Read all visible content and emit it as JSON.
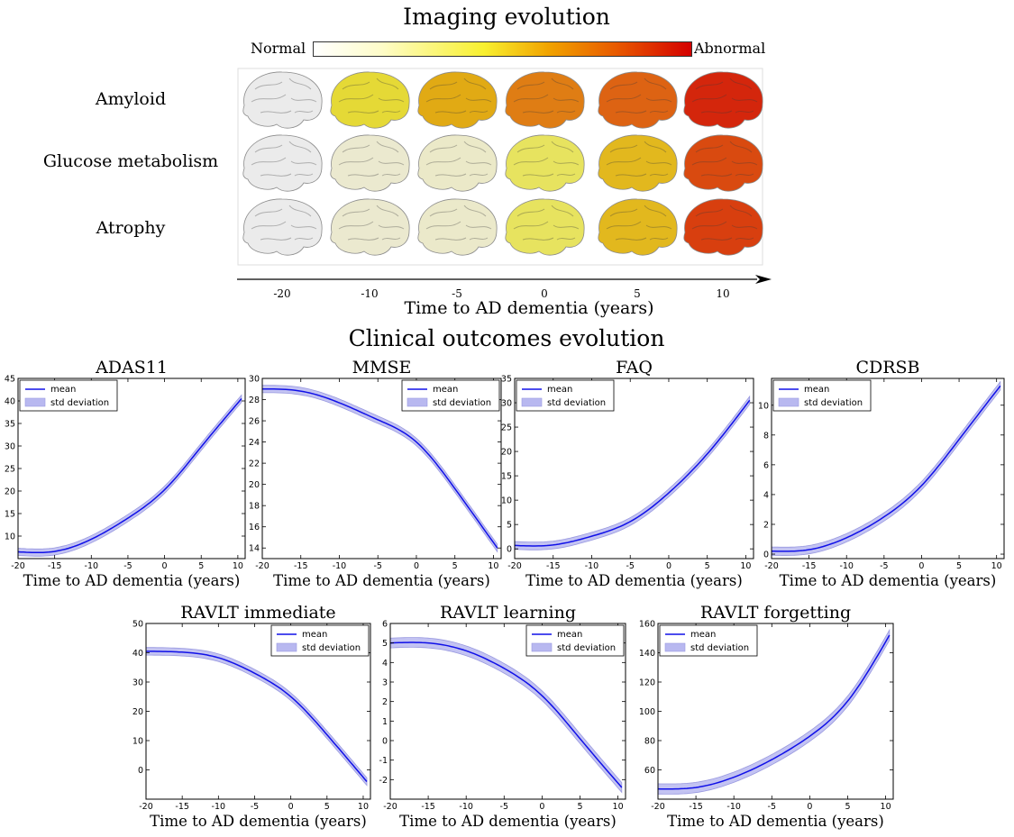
{
  "imaging": {
    "title": "Imaging evolution",
    "colorbar": {
      "low_label": "Normal",
      "high_label": "Abnormal"
    },
    "rows": [
      {
        "label": "Amyloid",
        "levels": [
          0.0,
          0.38,
          0.55,
          0.7,
          0.78,
          0.95
        ]
      },
      {
        "label": "Glucose metabolism",
        "levels": [
          0.0,
          0.12,
          0.15,
          0.3,
          0.5,
          0.85
        ]
      },
      {
        "label": "Atrophy",
        "levels": [
          0.0,
          0.12,
          0.14,
          0.3,
          0.5,
          0.88
        ]
      }
    ],
    "axis": {
      "label": "Time to AD dementia (years)",
      "ticks": [
        "-20",
        "-10",
        "-5",
        "0",
        "5",
        "10"
      ]
    }
  },
  "clinical": {
    "title": "Clinical outcomes evolution"
  },
  "legend": {
    "mean": "mean",
    "std": "std deviation"
  },
  "colors": {
    "mean_line": "#1010e8",
    "std_band": "#b8b8f0"
  },
  "chart_data": [
    {
      "type": "line",
      "title": "ADAS11",
      "xlabel": "Time to AD dementia (years)",
      "ylabel": "",
      "xlim": [
        -20,
        11
      ],
      "ylim": [
        5,
        45
      ],
      "xticks": [
        -20,
        -15,
        -10,
        -5,
        0,
        5,
        10
      ],
      "yticks": [
        10,
        15,
        20,
        25,
        30,
        35,
        40,
        45
      ],
      "legend": "top-left",
      "series": [
        {
          "name": "mean",
          "x": [
            -20,
            -15,
            -10,
            -5,
            0,
            5,
            10.5
          ],
          "y": [
            6.5,
            6.6,
            9.3,
            14.0,
            20.3,
            29.8,
            40.5
          ],
          "std": 0.8
        }
      ]
    },
    {
      "type": "line",
      "title": "MMSE",
      "xlabel": "Time to AD dementia (years)",
      "ylabel": "",
      "xlim": [
        -20,
        11
      ],
      "ylim": [
        13,
        30
      ],
      "xticks": [
        -20,
        -15,
        -10,
        -5,
        0,
        5,
        10
      ],
      "yticks": [
        14,
        16,
        18,
        20,
        22,
        24,
        26,
        28,
        30
      ],
      "legend": "top-right",
      "series": [
        {
          "name": "mean",
          "x": [
            -20,
            -15,
            -10,
            -5,
            0,
            5,
            10.5
          ],
          "y": [
            29.0,
            28.8,
            27.7,
            26.1,
            24.0,
            19.6,
            14.0
          ],
          "std": 0.35
        }
      ]
    },
    {
      "type": "line",
      "title": "FAQ",
      "xlabel": "Time to AD dementia (years)",
      "ylabel": "",
      "xlim": [
        -20,
        11
      ],
      "ylim": [
        -2,
        35
      ],
      "xticks": [
        -20,
        -15,
        -10,
        -5,
        0,
        5,
        10
      ],
      "yticks": [
        0,
        5,
        10,
        15,
        20,
        25,
        30,
        35
      ],
      "legend": "top-left",
      "series": [
        {
          "name": "mean",
          "x": [
            -20,
            -15,
            -10,
            -5,
            0,
            5,
            10.5
          ],
          "y": [
            0.7,
            0.8,
            2.6,
            5.6,
            11.5,
            19.5,
            30.5
          ],
          "std": 0.8
        }
      ]
    },
    {
      "type": "line",
      "title": "CDRSB",
      "xlabel": "Time to AD dementia (years)",
      "ylabel": "",
      "xlim": [
        -20,
        11
      ],
      "ylim": [
        -0.3,
        11.8
      ],
      "xticks": [
        -20,
        -15,
        -10,
        -5,
        0,
        5,
        10
      ],
      "yticks": [
        0,
        2,
        4,
        6,
        8,
        10
      ],
      "legend": "top-left",
      "series": [
        {
          "name": "mean",
          "x": [
            -20,
            -15,
            -10,
            -5,
            0,
            5,
            10.5
          ],
          "y": [
            0.2,
            0.3,
            1.1,
            2.5,
            4.6,
            7.7,
            11.3
          ],
          "std": 0.28
        }
      ]
    },
    {
      "type": "line",
      "title": "RAVLT immediate",
      "xlabel": "Time to AD dementia (years)",
      "ylabel": "",
      "xlim": [
        -20,
        11
      ],
      "ylim": [
        -10,
        50
      ],
      "xticks": [
        -20,
        -15,
        -10,
        -5,
        0,
        5,
        10
      ],
      "yticks": [
        0,
        10,
        20,
        30,
        40,
        50
      ],
      "legend": "top-right",
      "series": [
        {
          "name": "mean",
          "x": [
            -20,
            -15,
            -10,
            -5,
            0,
            5,
            10.5
          ],
          "y": [
            40.5,
            40.2,
            38.3,
            33.0,
            25.0,
            12.0,
            -4.0
          ],
          "std": 1.3
        }
      ]
    },
    {
      "type": "line",
      "title": "RAVLT learning",
      "xlabel": "Time to AD dementia (years)",
      "ylabel": "",
      "xlim": [
        -20,
        11
      ],
      "ylim": [
        -3,
        6
      ],
      "xticks": [
        -20,
        -15,
        -10,
        -5,
        0,
        5,
        10
      ],
      "yticks": [
        -2,
        -1,
        0,
        1,
        2,
        3,
        4,
        5,
        6
      ],
      "legend": "top-right",
      "series": [
        {
          "name": "mean",
          "x": [
            -20,
            -15,
            -10,
            -5,
            0,
            5,
            10.5
          ],
          "y": [
            5.0,
            5.0,
            4.6,
            3.7,
            2.3,
            0.1,
            -2.4
          ],
          "std": 0.25
        }
      ]
    },
    {
      "type": "line",
      "title": "RAVLT forgetting",
      "xlabel": "Time to AD dementia (years)",
      "ylabel": "",
      "xlim": [
        -20,
        11
      ],
      "ylim": [
        40,
        160
      ],
      "xticks": [
        -20,
        -15,
        -10,
        -5,
        0,
        5,
        10
      ],
      "yticks": [
        60,
        80,
        100,
        120,
        140,
        160
      ],
      "legend": "top-left",
      "series": [
        {
          "name": "mean",
          "x": [
            -20,
            -15,
            -10,
            -5,
            0,
            5,
            10.5
          ],
          "y": [
            47,
            48,
            55,
            67,
            83,
            107,
            152
          ],
          "std": 3.5
        }
      ]
    }
  ]
}
